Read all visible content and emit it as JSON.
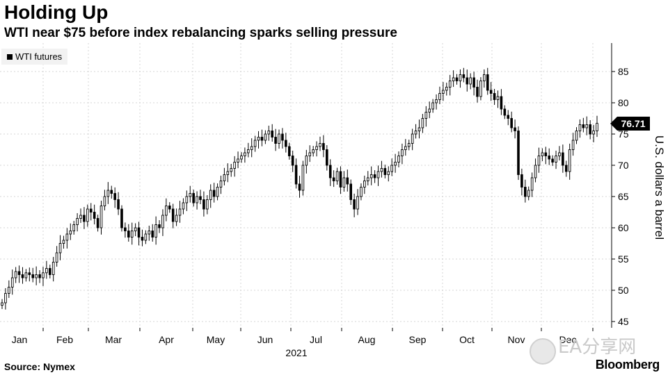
{
  "header": {
    "title": "Holding Up",
    "subtitle": "WTI near $75 before index rebalancing sparks selling pressure"
  },
  "legend": {
    "label": "WTI futures"
  },
  "footer": {
    "source": "Source: Nymex",
    "brand": "Bloomberg"
  },
  "watermark": {
    "text": "EA分享网"
  },
  "colors": {
    "candle": "#000000",
    "grid": "#d4d4d4",
    "axis": "#000000",
    "last_box": "#000000"
  },
  "chart_data": {
    "type": "candlestick",
    "title": "Holding Up",
    "subtitle": "WTI near $75 before index rebalancing sparks selling pressure",
    "series": [
      {
        "name": "WTI futures"
      }
    ],
    "ylabel": "U.S. dollars a barrel",
    "xlabel_year": "2021",
    "ylim": [
      44,
      89
    ],
    "yticks": [
      45,
      50,
      55,
      60,
      65,
      70,
      75,
      80,
      85
    ],
    "months": [
      "Jan",
      "Feb",
      "Mar",
      "Apr",
      "May",
      "Jun",
      "Jul",
      "Aug",
      "Sep",
      "Oct",
      "Nov",
      "Dec"
    ],
    "last_value": "76.71",
    "grid": true,
    "legend_position": "top-left",
    "closes": [
      48.0,
      49.5,
      50.5,
      52.0,
      53.0,
      52.5,
      52.0,
      52.8,
      52.5,
      52.0,
      52.5,
      52.0,
      52.8,
      53.5,
      52.5,
      54.5,
      56.0,
      57.5,
      58.0,
      59.0,
      59.5,
      60.5,
      61.5,
      62.0,
      61.0,
      63.0,
      62.5,
      61.5,
      60.0,
      63.5,
      65.0,
      66.0,
      65.5,
      64.5,
      63.0,
      60.0,
      59.5,
      58.5,
      59.5,
      60.0,
      58.5,
      58.0,
      59.0,
      59.5,
      58.5,
      60.5,
      60.0,
      62.0,
      63.5,
      63.0,
      61.0,
      62.0,
      63.0,
      64.0,
      65.0,
      65.5,
      64.0,
      65.0,
      64.5,
      63.0,
      64.5,
      66.0,
      65.0,
      66.5,
      67.5,
      68.5,
      69.0,
      69.5,
      70.5,
      71.0,
      71.5,
      72.0,
      72.5,
      73.0,
      74.0,
      74.5,
      74.0,
      75.0,
      75.5,
      74.5,
      73.5,
      75.0,
      74.0,
      73.0,
      71.5,
      70.0,
      67.0,
      66.0,
      70.0,
      71.5,
      72.0,
      72.5,
      73.0,
      73.5,
      72.5,
      70.0,
      68.0,
      67.5,
      69.0,
      66.5,
      68.0,
      67.0,
      64.5,
      63.0,
      65.0,
      66.5,
      67.5,
      68.0,
      68.5,
      68.0,
      69.0,
      69.5,
      68.5,
      69.0,
      70.0,
      70.5,
      71.5,
      72.5,
      73.0,
      73.5,
      75.0,
      75.5,
      76.0,
      77.5,
      78.5,
      79.0,
      80.0,
      80.5,
      81.5,
      82.0,
      82.5,
      83.5,
      84.0,
      83.5,
      84.5,
      84.0,
      83.0,
      84.0,
      82.5,
      81.0,
      83.5,
      84.5,
      82.0,
      81.5,
      80.5,
      81.0,
      79.0,
      78.0,
      77.5,
      76.0,
      75.5,
      68.5,
      66.5,
      65.0,
      66.0,
      68.0,
      70.0,
      71.5,
      72.0,
      71.5,
      71.0,
      70.5,
      71.5,
      72.0,
      70.0,
      69.0,
      72.5,
      74.0,
      75.5,
      76.5,
      76.0,
      76.5,
      75.0,
      75.5,
      76.71
    ]
  }
}
